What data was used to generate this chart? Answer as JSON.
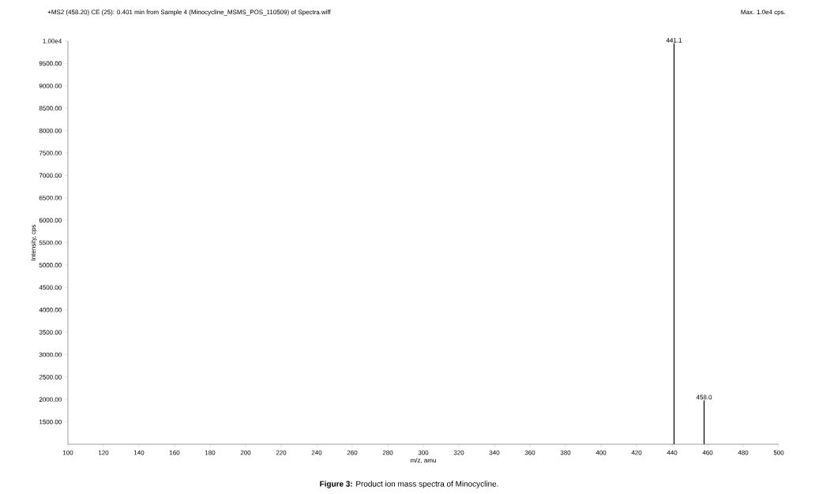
{
  "chart_data": {
    "type": "bar",
    "title": "+MS2 (458.20) CE (25): 0.401 min from Sample 4 (Minocycline_MSMS_POS_110509) of Spectra.wiff",
    "xlabel": "m/z, amu",
    "ylabel": "Intensity, cps",
    "x": [
      441.1,
      458.0
    ],
    "values": [
      9950,
      1980
    ],
    "color": "#000000",
    "xlim": [
      100,
      500
    ],
    "ylim": [
      1000,
      10000
    ],
    "xticks": [
      100,
      120,
      140,
      160,
      180,
      200,
      220,
      240,
      260,
      280,
      300,
      320,
      340,
      360,
      380,
      400,
      420,
      440,
      460,
      480,
      500
    ],
    "yticks": [
      {
        "value": 1500,
        "label": "1500.00"
      },
      {
        "value": 2000,
        "label": "2000.00"
      },
      {
        "value": 2500,
        "label": "2500.00"
      },
      {
        "value": 3000,
        "label": "3000.00"
      },
      {
        "value": 3500,
        "label": "3500.00"
      },
      {
        "value": 4000,
        "label": "4000.00"
      },
      {
        "value": 4500,
        "label": "4500.00"
      },
      {
        "value": 5000,
        "label": "5000.00"
      },
      {
        "value": 5500,
        "label": "5500.00"
      },
      {
        "value": 6000,
        "label": "6000.00"
      },
      {
        "value": 6500,
        "label": "6500.00"
      },
      {
        "value": 7000,
        "label": "7000.00"
      },
      {
        "value": 7500,
        "label": "7500.00"
      },
      {
        "value": 8000,
        "label": "8000.00"
      },
      {
        "value": 8500,
        "label": "8500.00"
      },
      {
        "value": 9000,
        "label": "9000.00"
      },
      {
        "value": 9500,
        "label": "9500.00"
      },
      {
        "value": 10000,
        "label": "1.00e4"
      }
    ],
    "annotations": [
      "Max. 1.0e4 cps.",
      "**Figure 3:** Product ion mass spectra of Minocycline.",
      {
        "text": "441.1",
        "x": 441.1,
        "y": 9950
      },
      {
        "text": "458.0",
        "x": 458.0,
        "y": 1980
      }
    ],
    "grid": false
  }
}
